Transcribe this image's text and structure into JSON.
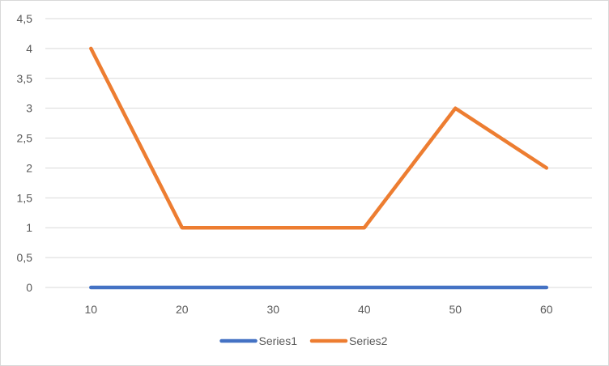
{
  "chart_data": {
    "type": "line",
    "x": [
      10,
      20,
      30,
      40,
      50,
      60
    ],
    "series": [
      {
        "name": "Series1",
        "values": [
          0,
          0,
          0,
          0,
          0,
          0
        ],
        "color": "#4472c4"
      },
      {
        "name": "Series2",
        "values": [
          4,
          1,
          1,
          1,
          3,
          2
        ],
        "color": "#ed7d31"
      }
    ],
    "y_ticks": [
      "0",
      "0,5",
      "1",
      "1,5",
      "2",
      "2,5",
      "3",
      "3,5",
      "4",
      "4,5"
    ],
    "x_ticks": [
      "10",
      "20",
      "30",
      "40",
      "50",
      "60"
    ],
    "ylim": [
      0,
      4.5
    ],
    "grid": true,
    "legend_position": "bottom",
    "gridline_color": "#d9d9d9",
    "axis_color": "#d9d9d9"
  }
}
